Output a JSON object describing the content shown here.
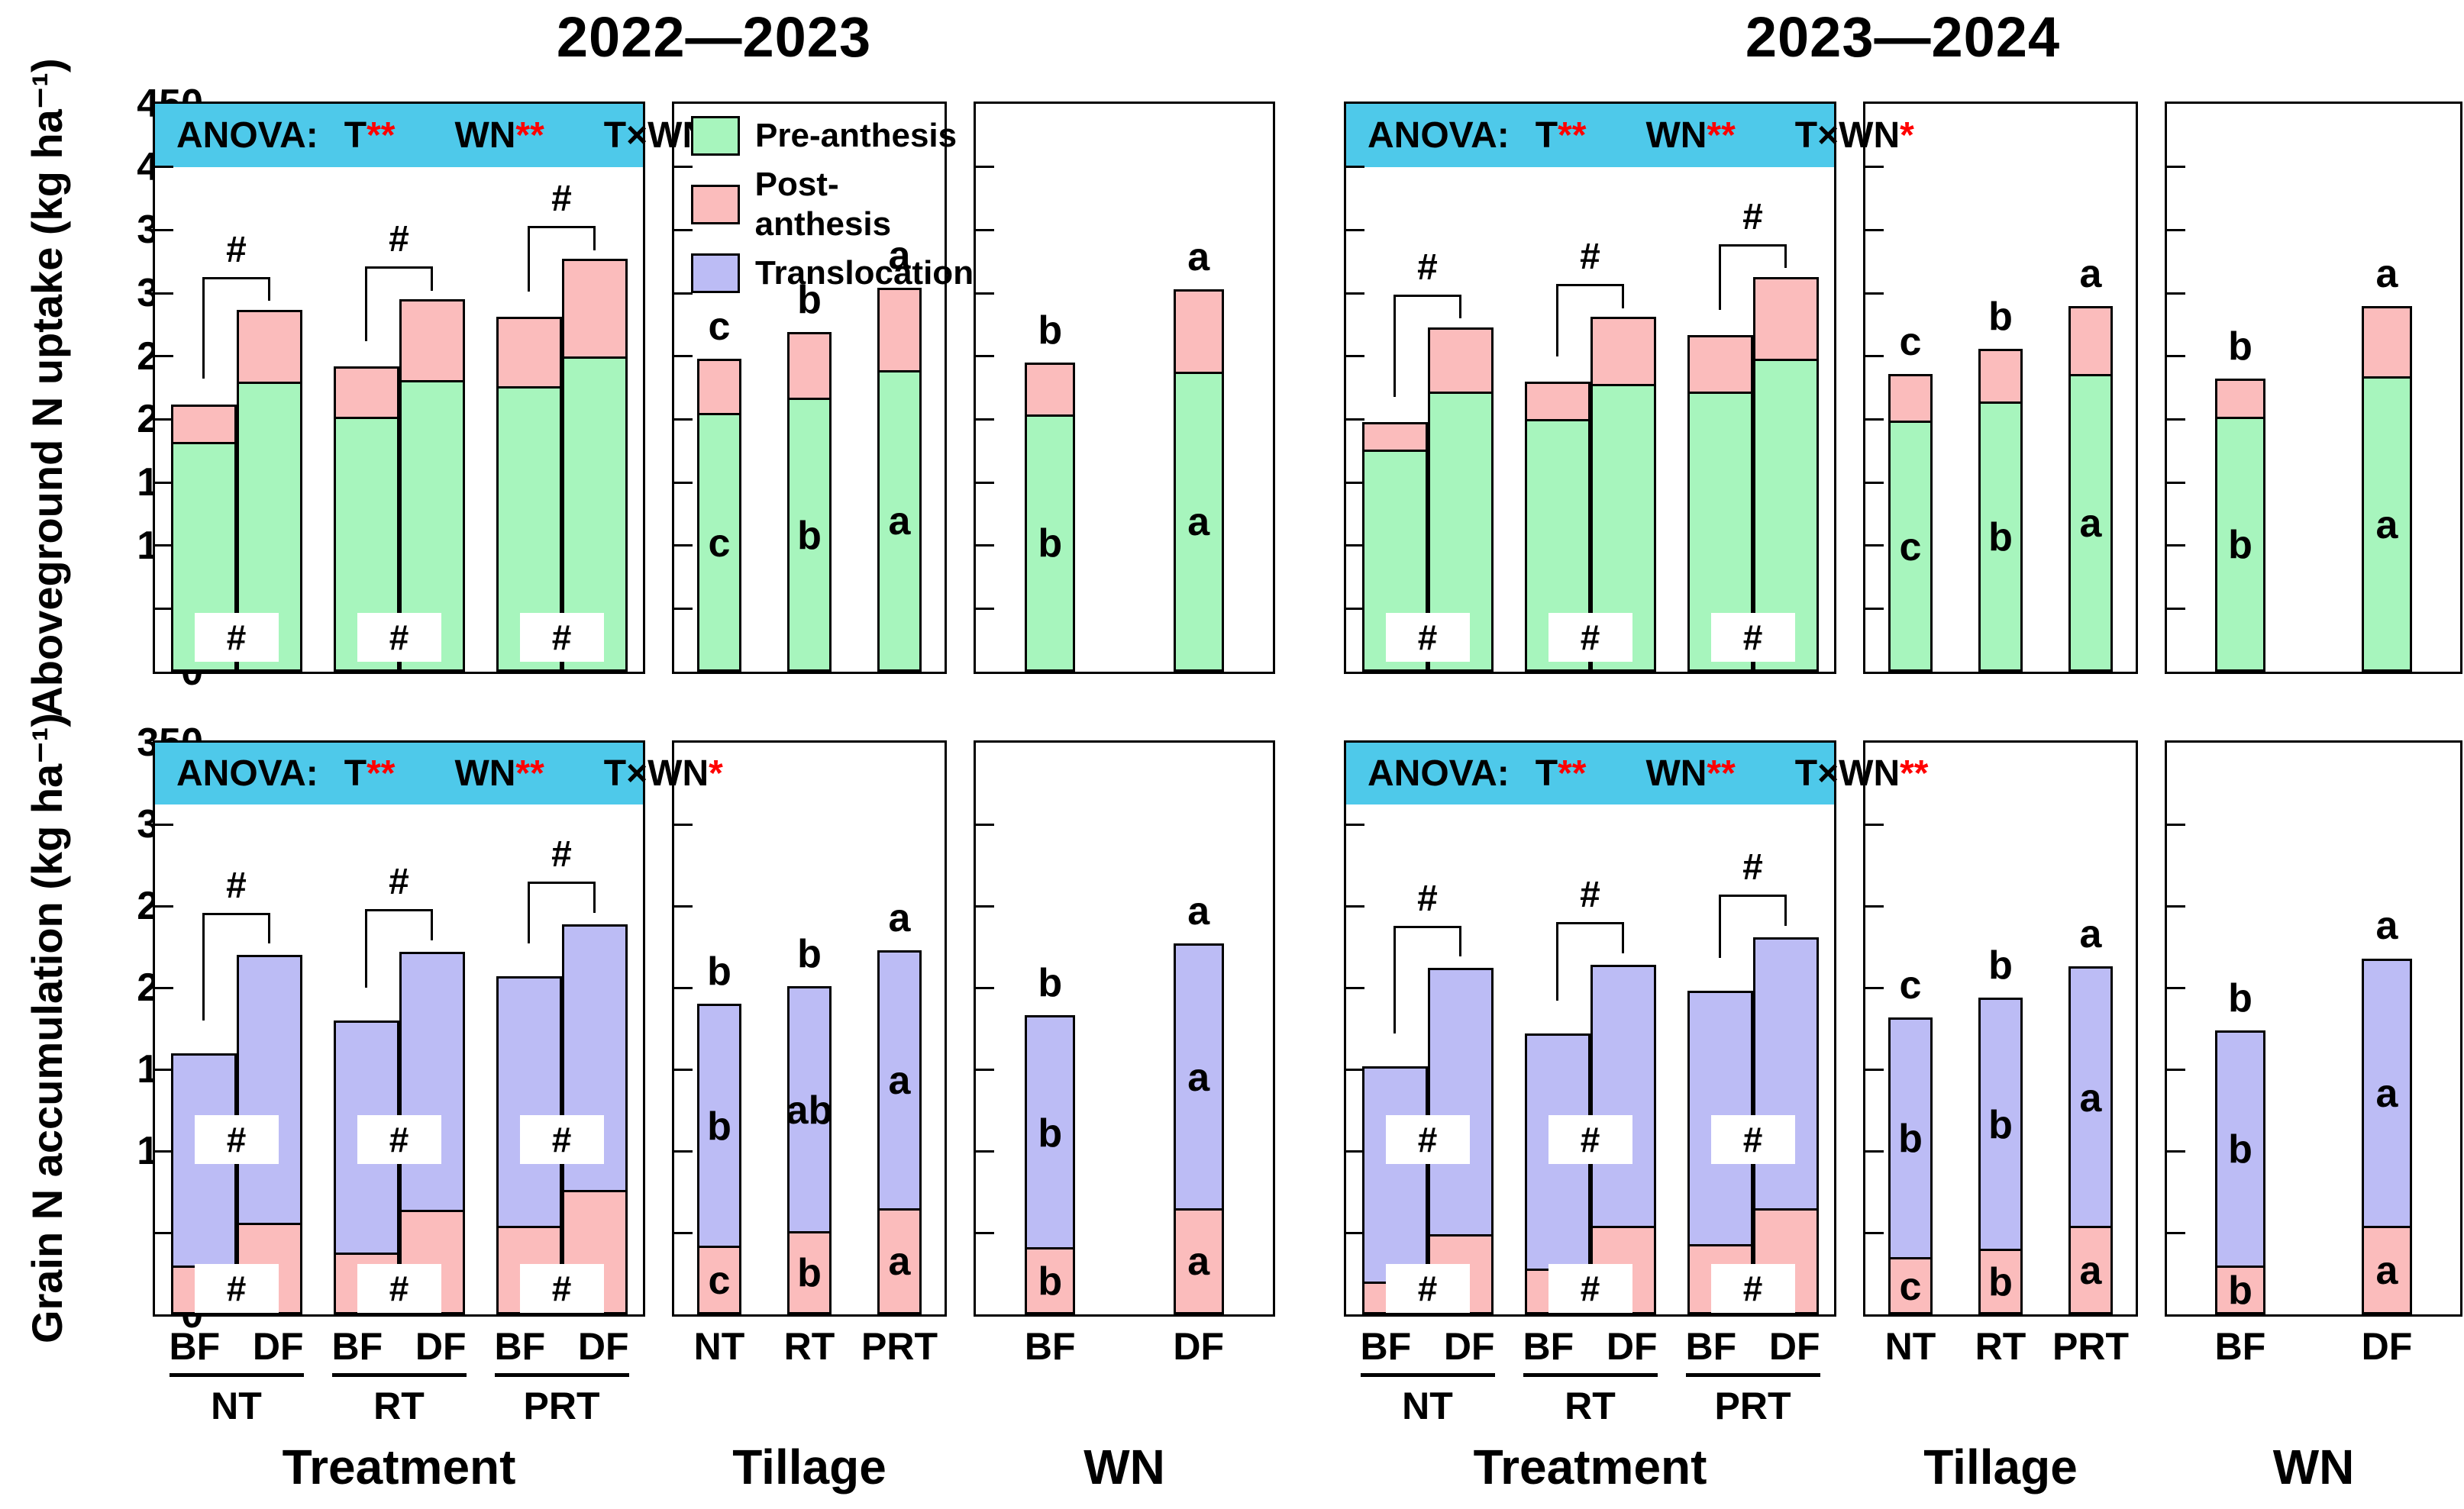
{
  "title_left": "2022—2023",
  "title_right": "2023—2024",
  "colors": {
    "pre": "#a7f5bd",
    "post": "#fbbcbc",
    "trans": "#bcbcf5",
    "band": "#4ec9ea",
    "sig": "#ff0000",
    "axis": "#000000"
  },
  "legend": {
    "position": "top-left of 2022—2023 Tillage panel",
    "items": [
      {
        "key": "pre",
        "label": "Pre-anthesis"
      },
      {
        "key": "post",
        "label": "Post-anthesis"
      },
      {
        "key": "trans",
        "label": "Translocation"
      }
    ]
  },
  "chart_data": {
    "type": "bar",
    "stacked": true,
    "grid": false,
    "rows": [
      {
        "key": "aboveground",
        "ylabel": "Aboveground N uptake (kg ha⁻¹)",
        "ylim": [
          0,
          450
        ],
        "tick_step": 50,
        "stack": [
          "pre",
          "post"
        ],
        "halves": [
          {
            "year": "2022—2023",
            "anova": {
              "label": "ANOVA:",
              "terms": [
                [
                  "T",
                  "**"
                ],
                [
                  "WN",
                  "**"
                ],
                [
                  "T×WN",
                  "*"
                ]
              ]
            },
            "panels": {
              "treatment": {
                "xtitle": "Treatment",
                "hash_boxes": [
                  27
                ],
                "pair_hash": "#",
                "groups": [
                  {
                    "label": "NT",
                    "bars": [
                      {
                        "label": "BF",
                        "segments": {
                          "pre": 182,
                          "post": 30
                        }
                      },
                      {
                        "label": "DF",
                        "segments": {
                          "pre": 230,
                          "post": 57
                        }
                      }
                    ]
                  },
                  {
                    "label": "RT",
                    "bars": [
                      {
                        "label": "BF",
                        "segments": {
                          "pre": 202,
                          "post": 40
                        }
                      },
                      {
                        "label": "DF",
                        "segments": {
                          "pre": 231,
                          "post": 64
                        }
                      }
                    ]
                  },
                  {
                    "label": "PRT",
                    "bars": [
                      {
                        "label": "BF",
                        "segments": {
                          "pre": 226,
                          "post": 55
                        }
                      },
                      {
                        "label": "DF",
                        "segments": {
                          "pre": 250,
                          "post": 77
                        }
                      }
                    ]
                  }
                ]
              },
              "tillage": {
                "xtitle": "Tillage",
                "legend": true,
                "bars": [
                  {
                    "label": "NT",
                    "segments": {
                      "pre": 205,
                      "post": 43
                    },
                    "letter_top": "c",
                    "letters": {
                      "pre": "c"
                    }
                  },
                  {
                    "label": "RT",
                    "segments": {
                      "pre": 217,
                      "post": 52
                    },
                    "letter_top": "b",
                    "letters": {
                      "pre": "b"
                    }
                  },
                  {
                    "label": "PRT",
                    "segments": {
                      "pre": 239,
                      "post": 65
                    },
                    "letter_top": "a",
                    "letters": {
                      "pre": "a"
                    }
                  }
                ]
              },
              "wn": {
                "xtitle": "WN",
                "bars": [
                  {
                    "label": "BF",
                    "segments": {
                      "pre": 204,
                      "post": 41
                    },
                    "letter_top": "b",
                    "letters": {
                      "pre": "b"
                    }
                  },
                  {
                    "label": "DF",
                    "segments": {
                      "pre": 238,
                      "post": 65
                    },
                    "letter_top": "a",
                    "letters": {
                      "pre": "a"
                    }
                  }
                ]
              }
            }
          },
          {
            "year": "2023—2024",
            "anova": {
              "label": "ANOVA:",
              "terms": [
                [
                  "T",
                  "**"
                ],
                [
                  "WN",
                  "**"
                ],
                [
                  "T×WN",
                  "*"
                ]
              ]
            },
            "panels": {
              "treatment": {
                "xtitle": "Treatment",
                "hash_boxes": [
                  27
                ],
                "pair_hash": "#",
                "groups": [
                  {
                    "label": "NT",
                    "bars": [
                      {
                        "label": "BF",
                        "segments": {
                          "pre": 176,
                          "post": 22
                        }
                      },
                      {
                        "label": "DF",
                        "segments": {
                          "pre": 222,
                          "post": 51
                        }
                      }
                    ]
                  },
                  {
                    "label": "RT",
                    "bars": [
                      {
                        "label": "BF",
                        "segments": {
                          "pre": 200,
                          "post": 30
                        }
                      },
                      {
                        "label": "DF",
                        "segments": {
                          "pre": 228,
                          "post": 53
                        }
                      }
                    ]
                  },
                  {
                    "label": "PRT",
                    "bars": [
                      {
                        "label": "BF",
                        "segments": {
                          "pre": 222,
                          "post": 45
                        }
                      },
                      {
                        "label": "DF",
                        "segments": {
                          "pre": 248,
                          "post": 65
                        }
                      }
                    ]
                  }
                ]
              },
              "tillage": {
                "xtitle": "Tillage",
                "bars": [
                  {
                    "label": "NT",
                    "segments": {
                      "pre": 199,
                      "post": 37
                    },
                    "letter_top": "c",
                    "letters": {
                      "pre": "c"
                    }
                  },
                  {
                    "label": "RT",
                    "segments": {
                      "pre": 214,
                      "post": 42
                    },
                    "letter_top": "b",
                    "letters": {
                      "pre": "b"
                    }
                  },
                  {
                    "label": "PRT",
                    "segments": {
                      "pre": 236,
                      "post": 54
                    },
                    "letter_top": "a",
                    "letters": {
                      "pre": "a"
                    }
                  }
                ]
              },
              "wn": {
                "xtitle": "WN",
                "bars": [
                  {
                    "label": "BF",
                    "segments": {
                      "pre": 202,
                      "post": 30
                    },
                    "letter_top": "b",
                    "letters": {
                      "pre": "b"
                    }
                  },
                  {
                    "label": "DF",
                    "segments": {
                      "pre": 234,
                      "post": 56
                    },
                    "letter_top": "a",
                    "letters": {
                      "pre": "a"
                    }
                  }
                ]
              }
            }
          }
        ]
      },
      {
        "key": "grain",
        "ylabel": "Grain N accumulation (kg ha⁻¹)",
        "ylim": [
          0,
          350
        ],
        "tick_step": 50,
        "stack": [
          "post",
          "trans"
        ],
        "halves": [
          {
            "year": "2022—2023",
            "anova": {
              "label": "ANOVA:",
              "terms": [
                [
                  "T",
                  "**"
                ],
                [
                  "WN",
                  "**"
                ],
                [
                  "T×WN",
                  "*"
                ]
              ]
            },
            "panels": {
              "treatment": {
                "xtitle": "Treatment",
                "hash_boxes": [
                  107,
                  16
                ],
                "pair_hash": "#",
                "groups": [
                  {
                    "label": "NT",
                    "bars": [
                      {
                        "label": "BF",
                        "segments": {
                          "post": 30,
                          "trans": 130
                        }
                      },
                      {
                        "label": "DF",
                        "segments": {
                          "post": 56,
                          "trans": 164
                        }
                      }
                    ]
                  },
                  {
                    "label": "RT",
                    "bars": [
                      {
                        "label": "BF",
                        "segments": {
                          "post": 38,
                          "trans": 142
                        }
                      },
                      {
                        "label": "DF",
                        "segments": {
                          "post": 64,
                          "trans": 158
                        }
                      }
                    ]
                  },
                  {
                    "label": "PRT",
                    "bars": [
                      {
                        "label": "BF",
                        "segments": {
                          "post": 54,
                          "trans": 153
                        }
                      },
                      {
                        "label": "DF",
                        "segments": {
                          "post": 76,
                          "trans": 163
                        }
                      }
                    ]
                  }
                ]
              },
              "tillage": {
                "xtitle": "Tillage",
                "bars": [
                  {
                    "label": "NT",
                    "segments": {
                      "post": 42,
                      "trans": 148
                    },
                    "letter_top": "b",
                    "letters": {
                      "trans": "b",
                      "post": "c"
                    }
                  },
                  {
                    "label": "RT",
                    "segments": {
                      "post": 51,
                      "trans": 150
                    },
                    "letter_top": "b",
                    "letters": {
                      "trans": "ab",
                      "post": "b"
                    }
                  },
                  {
                    "label": "PRT",
                    "segments": {
                      "post": 65,
                      "trans": 158
                    },
                    "letter_top": "a",
                    "letters": {
                      "trans": "a",
                      "post": "a"
                    }
                  }
                ]
              },
              "wn": {
                "xtitle": "WN",
                "bars": [
                  {
                    "label": "BF",
                    "segments": {
                      "post": 41,
                      "trans": 142
                    },
                    "letter_top": "b",
                    "letters": {
                      "trans": "b",
                      "post": "b"
                    }
                  },
                  {
                    "label": "DF",
                    "segments": {
                      "post": 65,
                      "trans": 162
                    },
                    "letter_top": "a",
                    "letters": {
                      "trans": "a",
                      "post": "a"
                    }
                  }
                ]
              }
            }
          },
          {
            "year": "2023—2024",
            "anova": {
              "label": "ANOVA:",
              "terms": [
                [
                  "T",
                  "**"
                ],
                [
                  "WN",
                  "**"
                ],
                [
                  "T×WN",
                  "**"
                ]
              ]
            },
            "panels": {
              "treatment": {
                "xtitle": "Treatment",
                "hash_boxes": [
                  107,
                  16
                ],
                "pair_hash": "#",
                "groups": [
                  {
                    "label": "NT",
                    "bars": [
                      {
                        "label": "BF",
                        "segments": {
                          "post": 20,
                          "trans": 132
                        }
                      },
                      {
                        "label": "DF",
                        "segments": {
                          "post": 49,
                          "trans": 163
                        }
                      }
                    ]
                  },
                  {
                    "label": "RT",
                    "bars": [
                      {
                        "label": "BF",
                        "segments": {
                          "post": 28,
                          "trans": 144
                        }
                      },
                      {
                        "label": "DF",
                        "segments": {
                          "post": 54,
                          "trans": 160
                        }
                      }
                    ]
                  },
                  {
                    "label": "PRT",
                    "bars": [
                      {
                        "label": "BF",
                        "segments": {
                          "post": 43,
                          "trans": 155
                        }
                      },
                      {
                        "label": "DF",
                        "segments": {
                          "post": 65,
                          "trans": 166
                        }
                      }
                    ]
                  }
                ]
              },
              "tillage": {
                "xtitle": "Tillage",
                "bars": [
                  {
                    "label": "NT",
                    "segments": {
                      "post": 35,
                      "trans": 147
                    },
                    "letter_top": "c",
                    "letters": {
                      "trans": "b",
                      "post": "c"
                    }
                  },
                  {
                    "label": "RT",
                    "segments": {
                      "post": 40,
                      "trans": 154
                    },
                    "letter_top": "b",
                    "letters": {
                      "trans": "b",
                      "post": "b"
                    }
                  },
                  {
                    "label": "PRT",
                    "segments": {
                      "post": 54,
                      "trans": 159
                    },
                    "letter_top": "a",
                    "letters": {
                      "trans": "a",
                      "post": "a"
                    }
                  }
                ]
              },
              "wn": {
                "xtitle": "WN",
                "bars": [
                  {
                    "label": "BF",
                    "segments": {
                      "post": 30,
                      "trans": 144
                    },
                    "letter_top": "b",
                    "letters": {
                      "trans": "b",
                      "post": "b"
                    }
                  },
                  {
                    "label": "DF",
                    "segments": {
                      "post": 54,
                      "trans": 164
                    },
                    "letter_top": "a",
                    "letters": {
                      "trans": "a",
                      "post": "a"
                    }
                  }
                ]
              }
            }
          }
        ]
      }
    ]
  }
}
